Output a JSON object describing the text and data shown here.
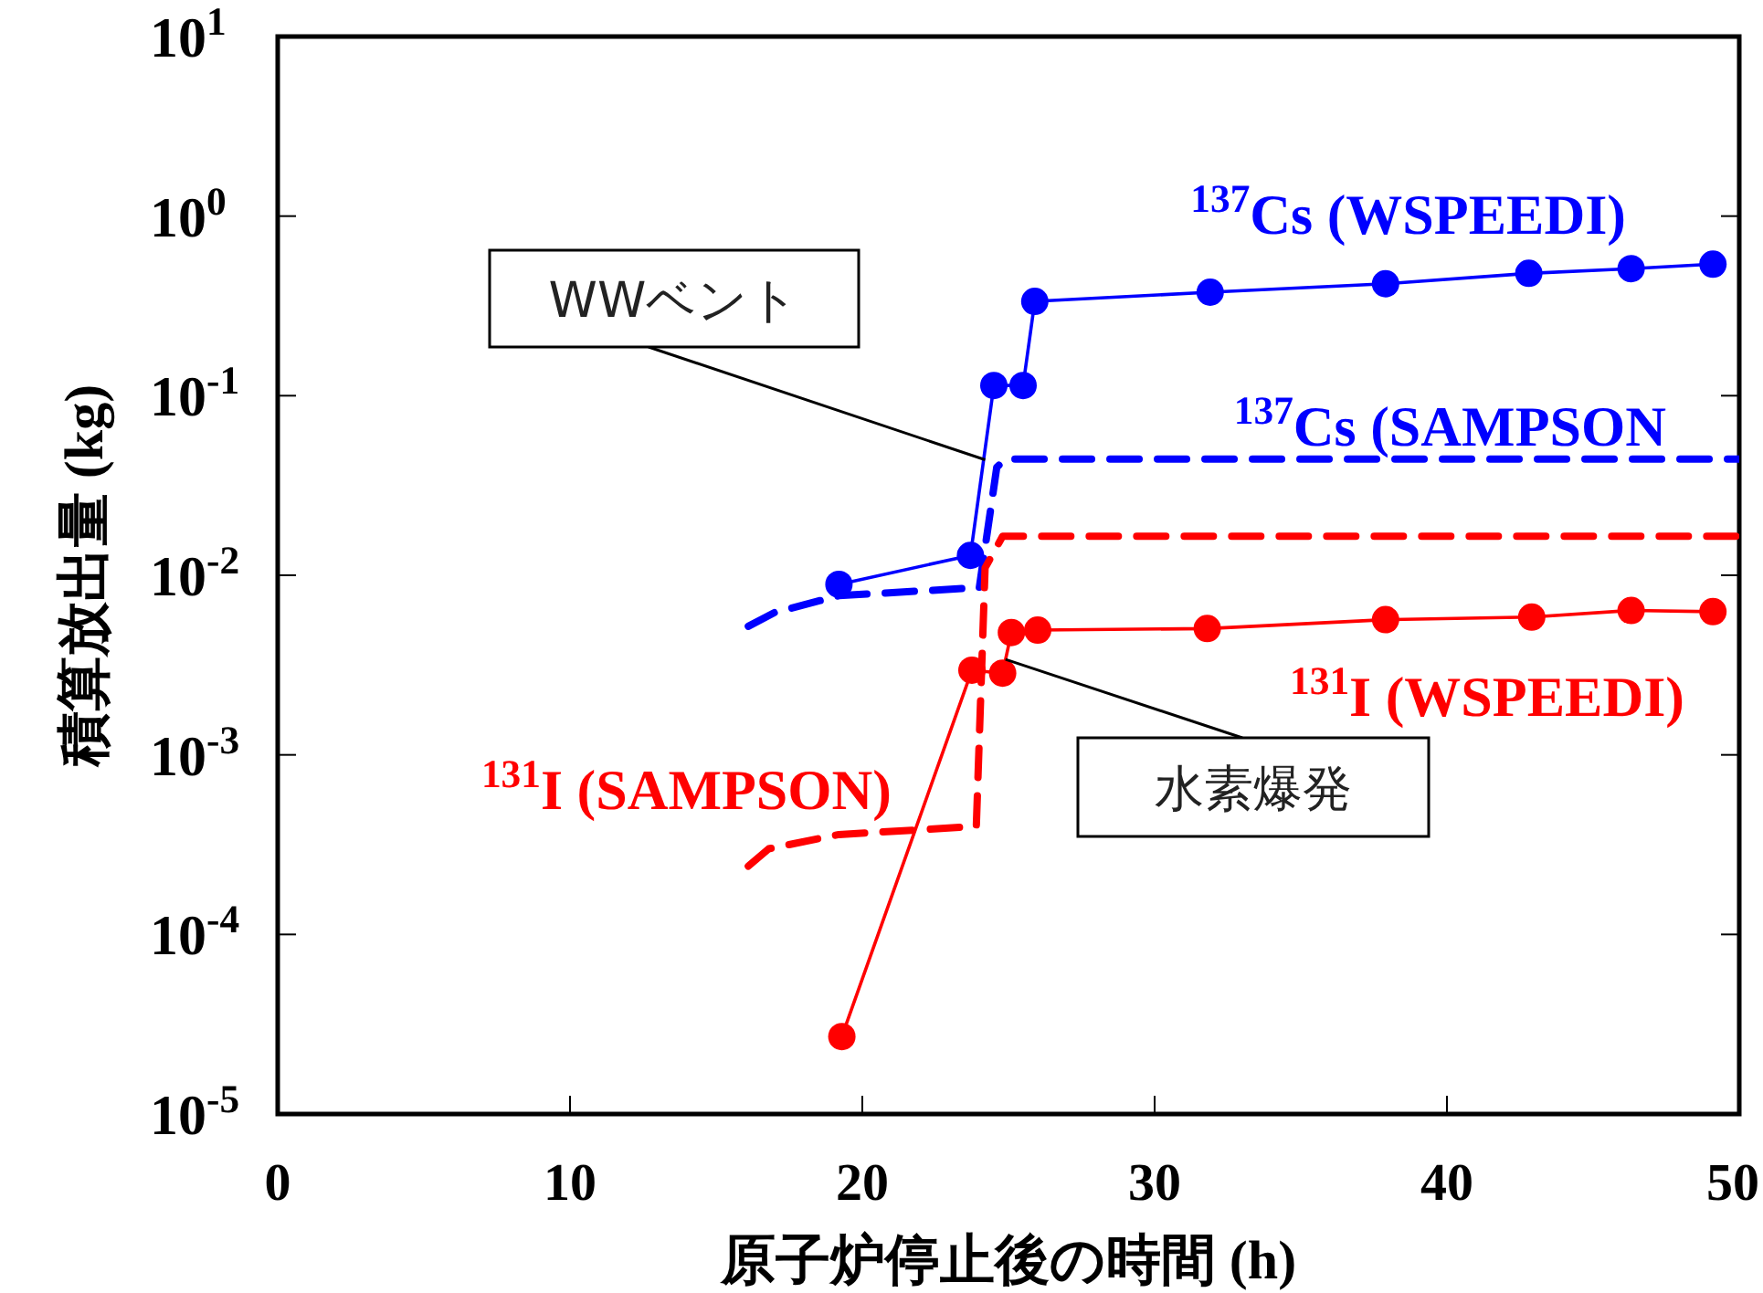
{
  "chart_data": {
    "type": "line",
    "xlabel": "原子炉停止後の時間 (h)",
    "ylabel": "積算放出量 (kg)",
    "log": "y",
    "grid": false,
    "legend": false,
    "xlim": [
      0,
      50
    ],
    "xticks": [
      0,
      10,
      20,
      30,
      40,
      50
    ],
    "ylim": [
      1e-05,
      10
    ],
    "yticks": [
      {
        "value": 1e-05,
        "label": "10$^{-5}$"
      },
      {
        "value": 0.0001,
        "label": "10$^{-4}$"
      },
      {
        "value": 0.001,
        "label": "10$^{-3}$"
      },
      {
        "value": 0.01,
        "label": "10$^{-2}$"
      },
      {
        "value": 0.1,
        "label": "10$^{-1}$"
      },
      {
        "value": 1,
        "label": "10$^{0}$"
      },
      {
        "value": 10,
        "label": "10$^{1}$"
      }
    ],
    "series": [
      {
        "name": "$^{137}$Cs (WSPEEDI)",
        "color": "#0000ff",
        "marker": "circle",
        "line_style": "solid",
        "x": [
          19.2,
          23.7,
          24.5,
          25.5,
          25.9,
          31.9,
          37.9,
          42.8,
          46.3,
          49.1
        ],
        "values": [
          0.0089,
          0.0129,
          0.114,
          0.114,
          0.335,
          0.377,
          0.42,
          0.48,
          0.51,
          0.54
        ]
      },
      {
        "name": "$^{137}$Cs (SAMPSON",
        "color": "#0000ff",
        "marker": "none",
        "line_style": "dashed",
        "x": [
          16.1,
          17.0,
          19.2,
          23.8,
          24.0,
          24.6,
          24.9,
          50
        ],
        "values": [
          0.0052,
          0.0062,
          0.0077,
          0.0085,
          0.0085,
          0.04,
          0.0443,
          0.0443
        ]
      },
      {
        "name": "$^{131}$I (WSPEEDI)",
        "color": "#ff0000",
        "marker": "circle",
        "line_style": "solid",
        "x": [
          19.3,
          23.75,
          24.8,
          25.1,
          26.0,
          31.8,
          37.9,
          42.9,
          46.3,
          49.1
        ],
        "values": [
          2.7e-05,
          0.00296,
          0.00285,
          0.0048,
          0.00495,
          0.00505,
          0.00566,
          0.00585,
          0.00637,
          0.00627
        ]
      },
      {
        "name": "$^{131}$I (SAMPSON)",
        "color": "#ff0000",
        "marker": "none",
        "line_style": "dashed",
        "x": [
          16.1,
          16.8,
          19.2,
          23.9,
          24.2,
          24.8,
          50
        ],
        "values": [
          0.00024,
          0.0003,
          0.00036,
          0.0004,
          0.011,
          0.0165,
          0.0165
        ]
      }
    ],
    "annotations": [
      {
        "text": "WWベント",
        "x": 24.2,
        "y": 0.044
      },
      {
        "text": "水素爆発",
        "x": 24.9,
        "y": 0.0034
      }
    ]
  }
}
